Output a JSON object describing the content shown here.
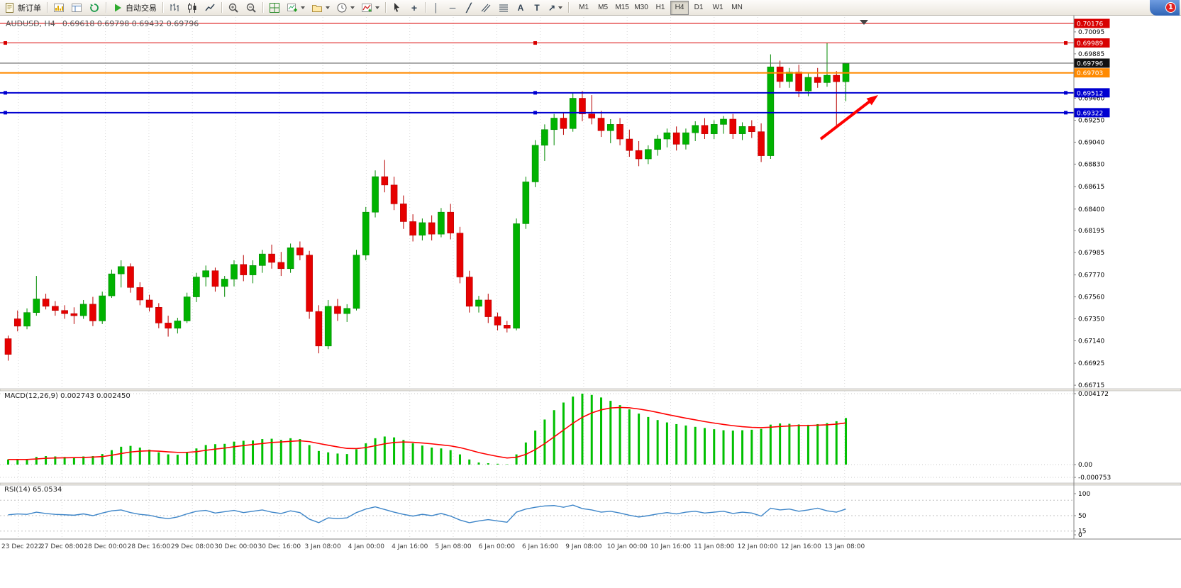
{
  "window": {
    "notification_badge": "1"
  },
  "toolbar": {
    "new_order_label": "新订单",
    "auto_trading_label": "自动交易",
    "timeframes": [
      "M1",
      "M5",
      "M15",
      "M30",
      "H1",
      "H4",
      "D1",
      "W1",
      "MN"
    ],
    "active_timeframe": "H4"
  },
  "icons": {
    "crosshair": "+",
    "vline": "│",
    "hline": "─",
    "trendline": "╱",
    "text_tool": "A",
    "label_tool": "T",
    "arrows": "↗"
  },
  "chart": {
    "title_symbol": "AUDUSD, H4",
    "title_ohlc": "0.69618 0.69798 0.69432 0.69796",
    "bid_price": 0.69796,
    "colors": {
      "up": "#00b200",
      "up_edge": "#008a00",
      "down": "#e60000",
      "down_edge": "#b80000",
      "bid_line": "#5a5a5a",
      "grid": "#d9d9d9"
    },
    "levels": [
      {
        "price": 0.70176,
        "color": "#d80000",
        "width": 1,
        "handles": false
      },
      {
        "price": 0.69989,
        "color": "#d80000",
        "width": 1,
        "handles": true
      },
      {
        "price": 0.69703,
        "color": "#ff8a00",
        "width": 2,
        "handles": false
      },
      {
        "price": 0.69512,
        "color": "#0000d0",
        "width": 2,
        "handles": true
      },
      {
        "price": 0.69322,
        "color": "#0000d0",
        "width": 2,
        "handles": true
      }
    ],
    "axis": {
      "regular_labels": [
        "0.70095",
        "0.69885",
        "0.69460",
        "0.69250",
        "0.69040",
        "0.68830",
        "0.68615",
        "0.68400",
        "0.68195",
        "0.67985",
        "0.67770",
        "0.67560",
        "0.67350",
        "0.67140",
        "0.66925",
        "0.66715"
      ],
      "price_boxes": [
        {
          "price": "0.70176",
          "color": "#d80000"
        },
        {
          "price": "0.69989",
          "color": "#d80000"
        },
        {
          "price": "0.69796",
          "color": "#111111"
        },
        {
          "price": "0.69703",
          "color": "#ff8a00"
        },
        {
          "price": "0.69512",
          "color": "#0000d0"
        },
        {
          "price": "0.69322",
          "color": "#0000d0"
        }
      ]
    }
  },
  "macd_panel": {
    "label": "MACD(12,26,9) 0.002743 0.002450",
    "axis_ticks": [
      "0.004172",
      "0.00",
      "-0.000753"
    ]
  },
  "rsi_panel": {
    "label": "RSI(14) 65.0534",
    "axis_ticks": [
      "100",
      "50",
      "15",
      "0"
    ],
    "level_lines": [
      85,
      50,
      15
    ]
  },
  "chart_data": {
    "type": "candlestick",
    "symbol": "AUDUSD",
    "period": "H4",
    "title": "AUDUSD, H4 0.69618 0.69798 0.69432 0.69796",
    "price_ylim": [
      0.6669,
      0.70225
    ],
    "x_labels": [
      "23 Dec 2022",
      "27 Dec 08:00",
      "28 Dec 00:00",
      "28 Dec 16:00",
      "29 Dec 08:00",
      "30 Dec 00:00",
      "30 Dec 16:00",
      "3 Jan 08:00",
      "4 Jan 00:00",
      "4 Jan 16:00",
      "5 Jan 08:00",
      "6 Jan 00:00",
      "6 Jan 16:00",
      "9 Jan 08:00",
      "10 Jan 00:00",
      "10 Jan 16:00",
      "11 Jan 08:00",
      "12 Jan 00:00",
      "12 Jan 16:00",
      "13 Jan 08:00"
    ],
    "ohlc": [
      [
        0.6716,
        0.6719,
        0.6695,
        0.6701
      ],
      [
        0.6735,
        0.6743,
        0.6723,
        0.6728
      ],
      [
        0.6728,
        0.6745,
        0.6725,
        0.6741
      ],
      [
        0.6741,
        0.6776,
        0.6738,
        0.6754
      ],
      [
        0.6754,
        0.6759,
        0.6744,
        0.6747
      ],
      [
        0.6747,
        0.6752,
        0.6738,
        0.6743
      ],
      [
        0.6743,
        0.6748,
        0.6735,
        0.674
      ],
      [
        0.674,
        0.6746,
        0.673,
        0.6738
      ],
      [
        0.6738,
        0.6753,
        0.6735,
        0.6749
      ],
      [
        0.6749,
        0.6756,
        0.6728,
        0.6733
      ],
      [
        0.6733,
        0.6761,
        0.673,
        0.6757
      ],
      [
        0.6757,
        0.6782,
        0.6755,
        0.6778
      ],
      [
        0.6778,
        0.6791,
        0.6765,
        0.6785
      ],
      [
        0.6785,
        0.6788,
        0.676,
        0.6765
      ],
      [
        0.6765,
        0.677,
        0.6748,
        0.6753
      ],
      [
        0.6753,
        0.6758,
        0.6742,
        0.6746
      ],
      [
        0.6746,
        0.675,
        0.6726,
        0.6731
      ],
      [
        0.6731,
        0.6738,
        0.6718,
        0.6726
      ],
      [
        0.6726,
        0.6736,
        0.6721,
        0.6733
      ],
      [
        0.6733,
        0.676,
        0.6731,
        0.6756
      ],
      [
        0.6756,
        0.6779,
        0.6751,
        0.6775
      ],
      [
        0.6775,
        0.6786,
        0.6766,
        0.6781
      ],
      [
        0.6781,
        0.6784,
        0.6761,
        0.6766
      ],
      [
        0.6766,
        0.6776,
        0.6756,
        0.6773
      ],
      [
        0.6773,
        0.6791,
        0.6766,
        0.6787
      ],
      [
        0.6787,
        0.6796,
        0.6771,
        0.6777
      ],
      [
        0.6777,
        0.6791,
        0.6769,
        0.6786
      ],
      [
        0.6786,
        0.6801,
        0.6779,
        0.6797
      ],
      [
        0.6797,
        0.6806,
        0.6783,
        0.6789
      ],
      [
        0.6789,
        0.6799,
        0.6776,
        0.6783
      ],
      [
        0.6783,
        0.6807,
        0.6779,
        0.6803
      ],
      [
        0.6803,
        0.6809,
        0.6791,
        0.6796
      ],
      [
        0.6796,
        0.68,
        0.6735,
        0.6742
      ],
      [
        0.6742,
        0.6748,
        0.6702,
        0.6709
      ],
      [
        0.6709,
        0.6753,
        0.6706,
        0.6747
      ],
      [
        0.6747,
        0.6754,
        0.6733,
        0.674
      ],
      [
        0.674,
        0.6749,
        0.6732,
        0.6745
      ],
      [
        0.6745,
        0.6801,
        0.6743,
        0.6796
      ],
      [
        0.6796,
        0.6842,
        0.6791,
        0.6837
      ],
      [
        0.6837,
        0.6877,
        0.6832,
        0.6871
      ],
      [
        0.6871,
        0.6887,
        0.6856,
        0.6863
      ],
      [
        0.6863,
        0.6871,
        0.6839,
        0.6845
      ],
      [
        0.6845,
        0.6853,
        0.6821,
        0.6828
      ],
      [
        0.6828,
        0.6835,
        0.6809,
        0.6815
      ],
      [
        0.6815,
        0.6831,
        0.681,
        0.6827
      ],
      [
        0.6827,
        0.6834,
        0.681,
        0.6816
      ],
      [
        0.6816,
        0.6841,
        0.6813,
        0.6837
      ],
      [
        0.6837,
        0.6845,
        0.6811,
        0.6817
      ],
      [
        0.6817,
        0.6823,
        0.6769,
        0.6775
      ],
      [
        0.6775,
        0.6781,
        0.6741,
        0.6747
      ],
      [
        0.6747,
        0.6757,
        0.6741,
        0.6753
      ],
      [
        0.6753,
        0.6759,
        0.6731,
        0.6737
      ],
      [
        0.6737,
        0.6741,
        0.6724,
        0.6729
      ],
      [
        0.6729,
        0.6733,
        0.6722,
        0.6726
      ],
      [
        0.6726,
        0.6831,
        0.6724,
        0.6826
      ],
      [
        0.6826,
        0.6871,
        0.6821,
        0.6866
      ],
      [
        0.6866,
        0.6906,
        0.6861,
        0.6901
      ],
      [
        0.6901,
        0.6921,
        0.6886,
        0.6916
      ],
      [
        0.6916,
        0.6931,
        0.6901,
        0.6927
      ],
      [
        0.6927,
        0.6932,
        0.6911,
        0.6917
      ],
      [
        0.6917,
        0.6951,
        0.6914,
        0.6946
      ],
      [
        0.6946,
        0.6953,
        0.6924,
        0.6931
      ],
      [
        0.6931,
        0.6949,
        0.6921,
        0.6927
      ],
      [
        0.6927,
        0.6934,
        0.6909,
        0.6915
      ],
      [
        0.6915,
        0.6926,
        0.6903,
        0.6921
      ],
      [
        0.6921,
        0.6927,
        0.6901,
        0.6907
      ],
      [
        0.6907,
        0.6916,
        0.689,
        0.6896
      ],
      [
        0.6896,
        0.6905,
        0.6881,
        0.6888
      ],
      [
        0.6888,
        0.6901,
        0.6883,
        0.6897
      ],
      [
        0.6897,
        0.6911,
        0.6891,
        0.6907
      ],
      [
        0.6907,
        0.6917,
        0.6899,
        0.6913
      ],
      [
        0.6913,
        0.6919,
        0.6896,
        0.6902
      ],
      [
        0.6902,
        0.6917,
        0.6897,
        0.6913
      ],
      [
        0.6913,
        0.6924,
        0.6905,
        0.692
      ],
      [
        0.692,
        0.6927,
        0.6907,
        0.6912
      ],
      [
        0.6912,
        0.6925,
        0.6907,
        0.6921
      ],
      [
        0.6921,
        0.6929,
        0.6912,
        0.6926
      ],
      [
        0.6926,
        0.6931,
        0.6907,
        0.6912
      ],
      [
        0.6912,
        0.6923,
        0.6906,
        0.6919
      ],
      [
        0.6919,
        0.6925,
        0.6908,
        0.6914
      ],
      [
        0.6914,
        0.6922,
        0.6885,
        0.6891
      ],
      [
        0.6891,
        0.6988,
        0.6888,
        0.6976
      ],
      [
        0.6976,
        0.6982,
        0.6956,
        0.6962
      ],
      [
        0.6962,
        0.6975,
        0.6956,
        0.6971
      ],
      [
        0.6971,
        0.6978,
        0.6947,
        0.6953
      ],
      [
        0.6953,
        0.697,
        0.6948,
        0.6966
      ],
      [
        0.6966,
        0.6975,
        0.6956,
        0.6961
      ],
      [
        0.6961,
        0.6999,
        0.6957,
        0.6968
      ],
      [
        0.6968,
        0.6972,
        0.6917,
        0.69618
      ],
      [
        0.69618,
        0.69798,
        0.69432,
        0.69796
      ]
    ],
    "indicators": [
      {
        "type": "bar",
        "name": "MACD(12,26,9)",
        "current_value": 0.002743,
        "current_signal": 0.00245,
        "ylim": [
          -0.00108,
          0.00434
        ],
        "values": [
          0.0003,
          0.00028,
          0.00032,
          0.00045,
          0.0005,
          0.00048,
          0.00045,
          0.00042,
          0.00048,
          0.0005,
          0.00062,
          0.00085,
          0.00105,
          0.0011,
          0.001,
          0.00088,
          0.00072,
          0.0006,
          0.00058,
          0.00072,
          0.00095,
          0.00115,
          0.0012,
          0.00122,
          0.00135,
          0.0014,
          0.00142,
          0.0015,
          0.00152,
          0.00145,
          0.00155,
          0.0015,
          0.00115,
          0.0008,
          0.00072,
          0.00065,
          0.00062,
          0.0009,
          0.00125,
          0.00155,
          0.00165,
          0.0016,
          0.00145,
          0.00125,
          0.00112,
          0.001,
          0.00095,
          0.00085,
          0.0006,
          0.0003,
          0.00012,
          8e-05,
          5e-05,
          2e-05,
          0.0006,
          0.0013,
          0.002,
          0.00265,
          0.0032,
          0.00365,
          0.004,
          0.00417,
          0.0041,
          0.00395,
          0.00375,
          0.0035,
          0.00325,
          0.003,
          0.0028,
          0.00262,
          0.00248,
          0.00238,
          0.0023,
          0.00222,
          0.00215,
          0.00208,
          0.00202,
          0.002,
          0.00202,
          0.00205,
          0.0021,
          0.00235,
          0.00242,
          0.0024,
          0.00236,
          0.00234,
          0.00238,
          0.00244,
          0.00255,
          0.00274
        ],
        "signal": [
          0.0003,
          0.0003,
          0.0003,
          0.00033,
          0.00037,
          0.00039,
          0.0004,
          0.00041,
          0.00042,
          0.00044,
          0.00047,
          0.00055,
          0.00065,
          0.00074,
          0.00079,
          0.00081,
          0.00079,
          0.00075,
          0.00072,
          0.00072,
          0.00076,
          0.00084,
          0.00091,
          0.00097,
          0.00105,
          0.00112,
          0.00118,
          0.00124,
          0.0013,
          0.00133,
          0.00137,
          0.0014,
          0.00135,
          0.00124,
          0.00114,
          0.00104,
          0.00095,
          0.00094,
          0.001,
          0.00111,
          0.00122,
          0.0013,
          0.00133,
          0.00131,
          0.00127,
          0.00122,
          0.00116,
          0.0011,
          0.001,
          0.00086,
          0.00071,
          0.00059,
          0.00048,
          0.00039,
          0.00043,
          0.0006,
          0.00088,
          0.00123,
          0.00163,
          0.00203,
          0.00243,
          0.00278,
          0.00304,
          0.00322,
          0.00333,
          0.00336,
          0.00334,
          0.00327,
          0.00318,
          0.00307,
          0.00295,
          0.00284,
          0.00273,
          0.00263,
          0.00253,
          0.00244,
          0.00236,
          0.00229,
          0.00223,
          0.00219,
          0.00217,
          0.0022,
          0.00224,
          0.00227,
          0.00229,
          0.0023,
          0.00232,
          0.00234,
          0.00238,
          0.00245
        ]
      },
      {
        "type": "line",
        "name": "RSI(14)",
        "current_value": 65.0534,
        "ylim": [
          0,
          100
        ],
        "values": [
          52,
          54,
          53,
          58,
          55,
          53,
          52,
          51,
          54,
          50,
          56,
          61,
          63,
          57,
          53,
          51,
          46,
          43,
          47,
          54,
          60,
          62,
          56,
          59,
          62,
          57,
          60,
          63,
          58,
          55,
          61,
          57,
          42,
          34,
          45,
          43,
          45,
          57,
          65,
          70,
          64,
          58,
          53,
          49,
          53,
          50,
          55,
          49,
          40,
          34,
          38,
          41,
          38,
          35,
          58,
          65,
          69,
          72,
          73,
          69,
          74,
          66,
          63,
          58,
          60,
          56,
          51,
          47,
          50,
          54,
          57,
          54,
          58,
          60,
          56,
          58,
          60,
          55,
          58,
          56,
          49,
          67,
          63,
          65,
          60,
          63,
          67,
          61,
          58,
          65.05
        ]
      }
    ],
    "annotations": [
      {
        "type": "arrow",
        "color": "#ff0000",
        "from_xy": [
          1157,
          174
        ],
        "to_xy": [
          1226,
          121
        ]
      }
    ]
  }
}
